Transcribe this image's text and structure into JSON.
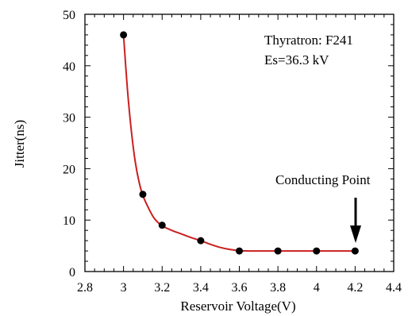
{
  "chart_data": {
    "type": "scatter",
    "xlabel": "Reservoir Voltage(V)",
    "ylabel": "Jitter(ns)",
    "xlim": [
      2.8,
      4.4
    ],
    "ylim": [
      0,
      50
    ],
    "xticks": [
      2.8,
      3.0,
      3.2,
      3.4,
      3.6,
      3.8,
      4.0,
      4.2,
      4.4
    ],
    "xtick_labels": [
      "2.8",
      "3",
      "3.2",
      "3.4",
      "3.6",
      "3.8",
      "4",
      "4.2",
      "4.4"
    ],
    "yticks": [
      0,
      10,
      20,
      30,
      40,
      50
    ],
    "ytick_labels": [
      "0",
      "10",
      "20",
      "30",
      "40",
      "50"
    ],
    "grid": false,
    "series": [
      {
        "color": "#000000",
        "marker": "filled-circle",
        "x": [
          3.0,
          3.1,
          3.2,
          3.4,
          3.6,
          3.8,
          4.0,
          4.2
        ],
        "y": [
          46,
          15,
          9,
          6,
          4,
          4,
          4,
          4
        ]
      }
    ],
    "fit_curve": {
      "color": "#cc1f1f",
      "x": [
        3.0,
        3.02,
        3.04,
        3.06,
        3.08,
        3.1,
        3.13,
        3.16,
        3.2,
        3.25,
        3.3,
        3.35,
        3.4,
        3.45,
        3.5,
        3.55,
        3.6,
        3.65,
        3.7,
        3.8,
        3.9,
        4.0,
        4.1,
        4.2
      ],
      "y": [
        46,
        35.5,
        27.5,
        21.5,
        17.5,
        14.8,
        12.3,
        10.3,
        8.9,
        8.0,
        7.3,
        6.6,
        6.0,
        5.3,
        4.7,
        4.3,
        4.05,
        4.0,
        4.0,
        4.0,
        4.0,
        4.0,
        4.0,
        4.0
      ]
    },
    "annotations": [
      {
        "text": "Thyratron: F241"
      },
      {
        "text": "Es=36.3 kV"
      },
      {
        "text": "Conducting Point",
        "x": 4.2,
        "y": 4
      }
    ]
  }
}
